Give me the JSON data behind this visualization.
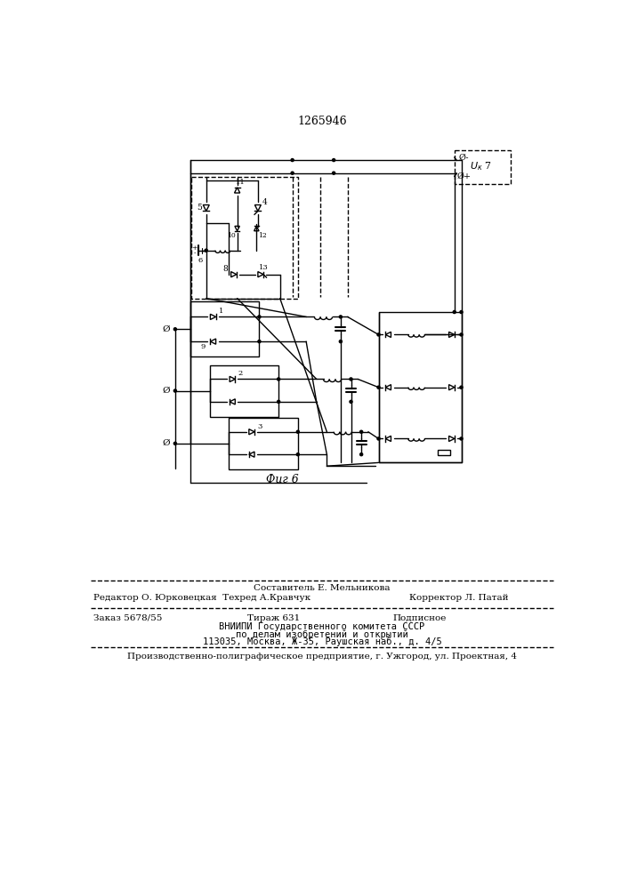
{
  "patent_number": "1265946",
  "fig_label": "Фиг 6",
  "background_color": "#ffffff",
  "line_color": "#000000",
  "text_color": "#000000",
  "footer_line1_center": "Составитель Е. Мельникова",
  "footer_line2_left": "Редактор О. Юрковецкая  Техред А.Кравчук",
  "footer_line2_right": "Корректор Л. Патай",
  "footer_line3_left": "Заказ 5678/55",
  "footer_line3_center": "Тираж 631",
  "footer_line3_right": "Подписное",
  "footer_line4": "ВНИИПИ Государственного комитета СССР",
  "footer_line5": "по делам изобретений и открытий",
  "footer_line6": "113035, Москва, Ж-35, Раушская наб., д. 4/5",
  "footer_line7": "Производственно-полиграфическое предприятие, г. Ужгород, ул. Проектная, 4"
}
